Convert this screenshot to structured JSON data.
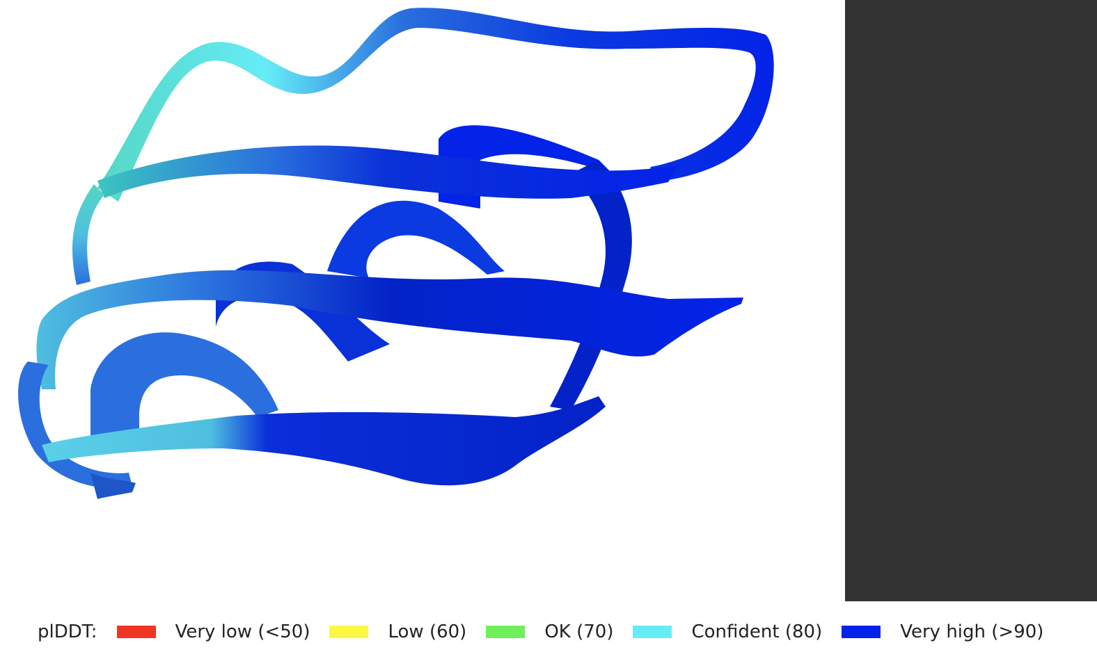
{
  "legend": {
    "title": "plDDT:",
    "items": [
      {
        "label": "Very low (<50)",
        "color": "#ef3523"
      },
      {
        "label": "Low (60)",
        "color": "#fcf742"
      },
      {
        "label": "OK (70)",
        "color": "#6ff05a"
      },
      {
        "label": "Confident (80)",
        "color": "#65ecf6"
      },
      {
        "label": "Very high (>90)",
        "color": "#0323e8"
      }
    ]
  },
  "colors": {
    "very_high": "#0323e8",
    "high_mid": "#2a6fdd",
    "confident": "#65ecf6",
    "teal": "#55d6c4",
    "panel": "#333333"
  }
}
